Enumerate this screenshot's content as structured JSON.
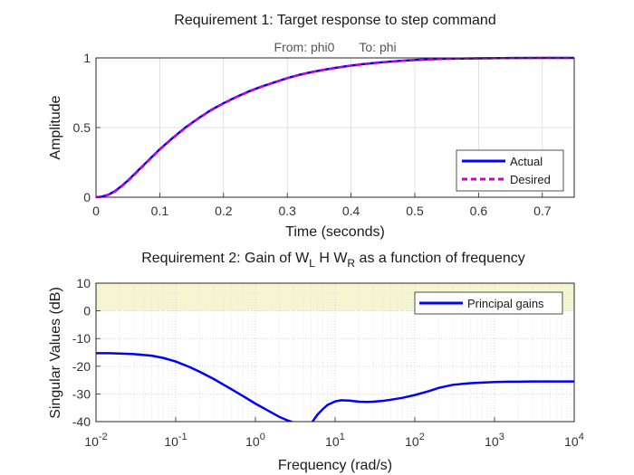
{
  "chart_data": [
    {
      "type": "line",
      "title": "Requirement 1: Target response to step command",
      "subtitle_from_label": "From: phi0",
      "subtitle_to_label": "To: phi",
      "xlabel": "Time (seconds)",
      "ylabel": "Amplitude",
      "xlim": [
        0,
        0.75
      ],
      "ylim": [
        0,
        1
      ],
      "x_ticks": [
        0,
        0.1,
        0.2,
        0.3,
        0.4,
        0.5,
        0.6,
        0.7
      ],
      "x_tick_labels": [
        "0",
        "0.1",
        "0.2",
        "0.3",
        "0.4",
        "0.5",
        "0.6",
        "0.7"
      ],
      "y_ticks": [
        0,
        0.5,
        1
      ],
      "y_tick_labels": [
        "0",
        "0.5",
        "1"
      ],
      "grid": true,
      "legend_position": "bottom-right",
      "series": [
        {
          "name": "Actual",
          "color": "#0000ff",
          "style": "solid",
          "x": [
            0,
            0.01,
            0.02,
            0.03,
            0.04,
            0.05,
            0.06,
            0.07,
            0.08,
            0.09,
            0.1,
            0.12,
            0.14,
            0.16,
            0.18,
            0.2,
            0.22,
            0.24,
            0.26,
            0.28,
            0.3,
            0.32,
            0.34,
            0.36,
            0.38,
            0.4,
            0.42,
            0.44,
            0.46,
            0.48,
            0.5,
            0.52,
            0.55,
            0.6,
            0.65,
            0.7,
            0.75
          ],
          "y": [
            0,
            0.005,
            0.02,
            0.045,
            0.08,
            0.12,
            0.165,
            0.21,
            0.255,
            0.3,
            0.345,
            0.425,
            0.5,
            0.565,
            0.625,
            0.675,
            0.72,
            0.76,
            0.795,
            0.825,
            0.855,
            0.88,
            0.9,
            0.917,
            0.932,
            0.945,
            0.956,
            0.965,
            0.973,
            0.98,
            0.985,
            0.99,
            0.994,
            0.997,
            0.999,
            1.0,
            1.0
          ]
        },
        {
          "name": "Desired",
          "color": "#cc00cc",
          "style": "dashed",
          "x": [
            0,
            0.01,
            0.02,
            0.03,
            0.04,
            0.05,
            0.06,
            0.07,
            0.08,
            0.09,
            0.1,
            0.12,
            0.14,
            0.16,
            0.18,
            0.2,
            0.22,
            0.24,
            0.26,
            0.28,
            0.3,
            0.32,
            0.34,
            0.36,
            0.38,
            0.4,
            0.42,
            0.44,
            0.46,
            0.48,
            0.5,
            0.52,
            0.55,
            0.6,
            0.65,
            0.7,
            0.75
          ],
          "y": [
            0,
            0.004,
            0.018,
            0.042,
            0.076,
            0.116,
            0.16,
            0.206,
            0.252,
            0.297,
            0.342,
            0.422,
            0.497,
            0.563,
            0.623,
            0.673,
            0.718,
            0.758,
            0.793,
            0.824,
            0.854,
            0.879,
            0.899,
            0.916,
            0.931,
            0.944,
            0.955,
            0.964,
            0.972,
            0.979,
            0.984,
            0.989,
            0.993,
            0.997,
            0.999,
            1.0,
            1.0
          ]
        }
      ]
    },
    {
      "type": "line",
      "title_parts": {
        "prefix": "Requirement 2: Gain of W",
        "sub1": "L",
        "mid": " H W",
        "sub2": "R",
        "suffix": " as a function of frequency"
      },
      "xlabel": "Frequency (rad/s)",
      "ylabel": "Singular Values (dB)",
      "xscale": "log",
      "xlim": [
        0.01,
        10000
      ],
      "ylim": [
        -40,
        10
      ],
      "x_ticks": [
        0.01,
        0.1,
        1,
        10,
        100,
        1000,
        10000
      ],
      "x_tick_labels": [
        {
          "base": "10",
          "exp": "-2"
        },
        {
          "base": "10",
          "exp": "-1"
        },
        {
          "base": "10",
          "exp": "0"
        },
        {
          "base": "10",
          "exp": "1"
        },
        {
          "base": "10",
          "exp": "2"
        },
        {
          "base": "10",
          "exp": "3"
        },
        {
          "base": "10",
          "exp": "4"
        }
      ],
      "y_ticks": [
        10,
        0,
        -10,
        -20,
        -30,
        -40
      ],
      "y_tick_labels": [
        "10",
        "0",
        "-10",
        "-20",
        "-30",
        "-40"
      ],
      "grid": true,
      "legend_position": "top-right",
      "shaded_region": {
        "y_from": 0,
        "y_to": 10,
        "color": "#f5f5d2"
      },
      "series": [
        {
          "name": "Principal gains",
          "color": "#0000ff",
          "style": "solid",
          "segments": [
            {
              "x": [
                0.01,
                0.015,
                0.02,
                0.03,
                0.05,
                0.07,
                0.1,
                0.15,
                0.2,
                0.3,
                0.5,
                0.7,
                1,
                1.5,
                2,
                2.5,
                3,
                3.3
              ],
              "y": [
                -15.3,
                -15.3,
                -15.4,
                -15.6,
                -16.2,
                -17,
                -18.3,
                -20.3,
                -22,
                -24.6,
                -28.3,
                -30.8,
                -33.5,
                -36.3,
                -38.3,
                -39.5,
                -40.3,
                -40.9
              ]
            },
            {
              "x": [
                4.8,
                5.2,
                6,
                7,
                8,
                10,
                12,
                15,
                20,
                25,
                30,
                40,
                50,
                70,
                100,
                150,
                200,
                300,
                500,
                700,
                1000,
                1500,
                2000,
                3000,
                5000,
                10000
              ],
              "y": [
                -41,
                -40,
                -37.5,
                -35.5,
                -34,
                -32.7,
                -32.3,
                -32.4,
                -32.8,
                -32.9,
                -32.8,
                -32.5,
                -32.1,
                -31.4,
                -30.4,
                -29,
                -27.8,
                -26.7,
                -26.1,
                -25.9,
                -25.7,
                -25.6,
                -25.6,
                -25.5,
                -25.5,
                -25.5
              ]
            }
          ]
        }
      ]
    }
  ]
}
